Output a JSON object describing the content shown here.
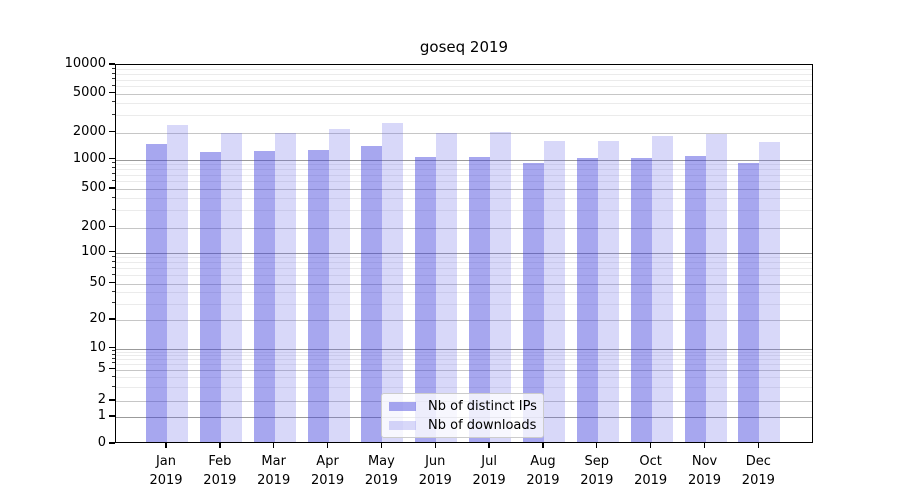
{
  "chart_data": {
    "type": "bar",
    "title": "goseq 2019",
    "categories": [
      "Jan 2019",
      "Feb 2019",
      "Mar 2019",
      "Apr 2019",
      "May 2019",
      "Jun 2019",
      "Jul 2019",
      "Aug 2019",
      "Sep 2019",
      "Oct 2019",
      "Nov 2019",
      "Dec 2019"
    ],
    "series": [
      {
        "name": "Nb of distinct IPs",
        "color": "rgba(60,60,220,0.45)",
        "values": [
          1400,
          1150,
          1170,
          1200,
          1350,
          1020,
          1020,
          880,
          1000,
          1000,
          1050,
          870
        ]
      },
      {
        "name": "Nb of downloads",
        "color": "rgba(100,100,230,0.25)",
        "values": [
          2300,
          1880,
          1880,
          2050,
          2400,
          1860,
          1950,
          1520,
          1530,
          1730,
          1810,
          1500
        ]
      }
    ],
    "yticks": [
      0,
      1,
      2,
      5,
      10,
      20,
      50,
      100,
      200,
      500,
      1000,
      2000,
      5000,
      10000
    ],
    "ylim": [
      0,
      10000
    ],
    "yscale": "symlog",
    "xlabel": "",
    "ylabel": "",
    "grid": "on",
    "legend_position": "lower center"
  }
}
